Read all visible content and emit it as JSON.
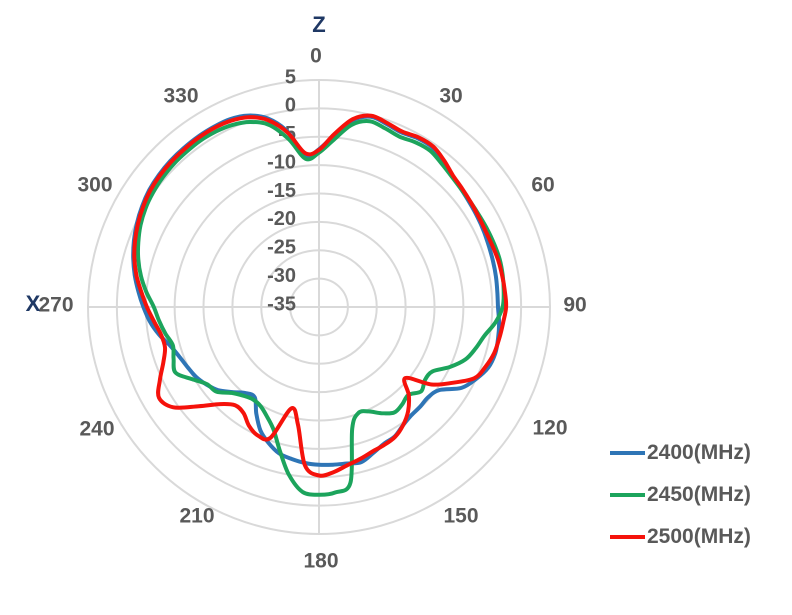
{
  "axis_titles": {
    "top": "Z",
    "left": "X"
  },
  "colors": {
    "grid": "#D9D9D9",
    "tick_label": "#595959",
    "axis_title": "#1F3864",
    "series_blue": "#2E75B6",
    "series_green": "#1CA45C",
    "series_red": "#F5120B"
  },
  "legend": {
    "items": [
      "2400(MHz)",
      "2450(MHz)",
      "2500(MHz)"
    ]
  },
  "chart_data": {
    "type": "line",
    "subtype": "polar-radiation-pattern",
    "title": "",
    "orientation": "0 degrees at top, angles increase clockwise",
    "angle_unit": "deg",
    "angle_labels": [
      "0",
      "30",
      "60",
      "90",
      "120",
      "150",
      "180",
      "210",
      "240",
      "270",
      "300",
      "330"
    ],
    "radial_axis": {
      "min": -35,
      "max": 5,
      "step": 5,
      "tick_labels": [
        "5",
        "0",
        "-5",
        "-10",
        "-15",
        "-20",
        "-25",
        "-30",
        "-35"
      ],
      "center_value": -35,
      "grid": true,
      "unit": "dB"
    },
    "axis_annotations": {
      "top": "Z",
      "left": "X"
    },
    "legend_position": "bottom-right",
    "angle_step_deg": 5,
    "angles_deg": [
      0,
      5,
      10,
      15,
      20,
      25,
      30,
      35,
      40,
      45,
      50,
      55,
      60,
      65,
      70,
      75,
      80,
      85,
      90,
      95,
      100,
      105,
      110,
      115,
      120,
      125,
      130,
      135,
      140,
      145,
      150,
      155,
      160,
      165,
      170,
      175,
      180,
      185,
      190,
      195,
      200,
      205,
      210,
      215,
      220,
      225,
      230,
      235,
      240,
      245,
      250,
      255,
      260,
      265,
      270,
      275,
      280,
      285,
      290,
      295,
      300,
      305,
      310,
      315,
      320,
      325,
      330,
      335,
      340,
      345,
      350,
      355
    ],
    "series": [
      {
        "name": "2400(MHz)",
        "color": "#2E75B6",
        "values": [
          -7.2,
          -4.6,
          -1.6,
          -0.3,
          -0.7,
          -1.1,
          -0.7,
          -0.7,
          -1.5,
          -2.4,
          -2.8,
          -3.1,
          -3.3,
          -3.5,
          -3.7,
          -3.8,
          -3.9,
          -4.0,
          -4.0,
          -3.7,
          -3.5,
          -3.4,
          -3.8,
          -5.0,
          -6.5,
          -9.5,
          -10.3,
          -10.2,
          -10.1,
          -9.6,
          -8.7,
          -8.4,
          -7.6,
          -6.7,
          -7.0,
          -7.1,
          -7.2,
          -7.4,
          -7.8,
          -8.3,
          -9.5,
          -11.0,
          -13.3,
          -15.6,
          -15.2,
          -13.8,
          -12.2,
          -11.2,
          -10.4,
          -9.9,
          -9.3,
          -8.4,
          -6.9,
          -5.6,
          -4.6,
          -3.6,
          -2.6,
          -1.7,
          -0.9,
          -0.2,
          0.4,
          0.9,
          1.2,
          1.4,
          1.5,
          1.6,
          1.6,
          1.5,
          0.9,
          -0.6,
          -3.6,
          -8.2
        ]
      },
      {
        "name": "2450(MHz)",
        "color": "#1CA45C",
        "values": [
          -7.8,
          -5.4,
          -2.4,
          -1.1,
          -1.5,
          -1.9,
          -1.5,
          -1.4,
          -2.0,
          -2.5,
          -2.8,
          -2.9,
          -2.9,
          -2.8,
          -2.7,
          -2.6,
          -2.7,
          -2.9,
          -3.2,
          -4.3,
          -5.9,
          -6.9,
          -8.0,
          -10.0,
          -12.3,
          -12.6,
          -11.9,
          -13.1,
          -12.6,
          -12.3,
          -13.4,
          -14.7,
          -15.1,
          -12.8,
          -3.6,
          -2.2,
          -1.9,
          -2.3,
          -5.0,
          -8.8,
          -12.0,
          -13.7,
          -14.8,
          -15.1,
          -14.6,
          -13.6,
          -11.8,
          -11.3,
          -9.6,
          -7.6,
          -8.2,
          -8.8,
          -8.0,
          -7.2,
          -6.4,
          -5.0,
          -3.7,
          -2.6,
          -1.7,
          -0.9,
          -0.3,
          0.1,
          0.4,
          0.6,
          0.7,
          0.8,
          0.7,
          0.4,
          -0.3,
          -1.8,
          -5.0,
          -8.8
        ]
      },
      {
        "name": "2500(MHz)",
        "color": "#F5120B",
        "values": [
          -7.3,
          -4.4,
          -1.4,
          -0.1,
          -0.5,
          -0.9,
          -0.5,
          -0.5,
          -1.3,
          -2.2,
          -2.6,
          -2.9,
          -3.1,
          -3.2,
          -3.1,
          -2.9,
          -2.8,
          -2.7,
          -2.6,
          -3.0,
          -3.3,
          -3.6,
          -4.3,
          -5.3,
          -8.3,
          -11.2,
          -15.5,
          -13.0,
          -11.0,
          -9.6,
          -8.6,
          -8.2,
          -7.9,
          -7.3,
          -6.7,
          -5.8,
          -5.3,
          -7.0,
          -14.0,
          -16.5,
          -10.5,
          -10.0,
          -10.8,
          -12.2,
          -12.4,
          -10.8,
          -7.8,
          -4.2,
          -3.0,
          -4.6,
          -6.3,
          -7.4,
          -7.2,
          -6.3,
          -5.2,
          -4.1,
          -2.9,
          -1.9,
          -1.1,
          -0.4,
          0.2,
          0.7,
          1.0,
          1.2,
          1.3,
          1.4,
          1.4,
          1.2,
          0.6,
          -0.9,
          -3.8,
          -7.8
        ]
      }
    ]
  }
}
